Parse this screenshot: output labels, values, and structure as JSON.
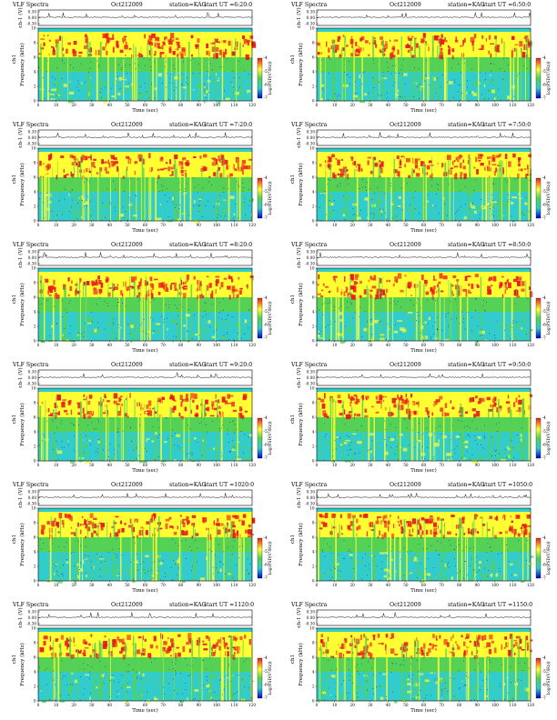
{
  "figure_title": "VLF Spectra",
  "colors": {
    "blue": "#0000cc",
    "cyan": "#33cccc",
    "green": "#55d155",
    "yellow": "#ffff33",
    "red": "#e81c1c",
    "trace": "#000000"
  },
  "common": {
    "header_label": "VLF Spectra",
    "date": "Oct212009",
    "station": "station=KAG",
    "start_prefix": "start  UT =",
    "top_ylabel": "ch-1 (V)",
    "top_ticks": [
      "0.30",
      "0.00",
      "-0.30"
    ],
    "channel_label": "ch1",
    "freq_ylabel": "Frequency (kHz)",
    "freq_ticks": [
      "0",
      "2",
      "4",
      "6",
      "8",
      "10"
    ],
    "time_label": "Time (sec)",
    "time_ticks": [
      "0",
      "10",
      "20",
      "30",
      "40",
      "50",
      "60",
      "70",
      "80",
      "90",
      "100",
      "110",
      "120"
    ],
    "colorbar_label": "Log(PSD(V²/Hz))",
    "colorbar_ticks": [
      "-4",
      "-5",
      "-6",
      "-7"
    ]
  },
  "chart_data": [
    {
      "type": "heatmap",
      "title": "VLF Spectra",
      "start_ut": "6:20:0",
      "x_range_sec": [
        0,
        120
      ],
      "y_range_khz": [
        0,
        10
      ],
      "ch1_range_v": [
        -0.3,
        0.3
      ],
      "colorbar_range": [
        -7,
        -4
      ],
      "band_khz": {
        "saturated_top": [
          9.5,
          10
        ],
        "strong": [
          6,
          9
        ],
        "moderate": [
          4,
          6
        ],
        "weak": [
          0,
          4
        ]
      }
    },
    {
      "type": "heatmap",
      "title": "VLF Spectra",
      "start_ut": "6:50:0",
      "x_range_sec": [
        0,
        120
      ],
      "y_range_khz": [
        0,
        10
      ],
      "ch1_range_v": [
        -0.3,
        0.3
      ],
      "colorbar_range": [
        -7,
        -4
      ],
      "band_khz": {
        "saturated_top": [
          9.5,
          10
        ],
        "strong": [
          6,
          9
        ],
        "moderate": [
          4,
          6
        ],
        "weak": [
          0,
          4
        ]
      }
    },
    {
      "type": "heatmap",
      "title": "VLF Spectra",
      "start_ut": "7:20:0",
      "x_range_sec": [
        0,
        120
      ],
      "y_range_khz": [
        0,
        10
      ],
      "ch1_range_v": [
        -0.3,
        0.3
      ],
      "colorbar_range": [
        -7,
        -4
      ],
      "band_khz": {
        "saturated_top": [
          9.5,
          10
        ],
        "strong": [
          6,
          9
        ],
        "moderate": [
          4,
          6
        ],
        "weak": [
          0,
          4
        ]
      }
    },
    {
      "type": "heatmap",
      "title": "VLF Spectra",
      "start_ut": "7:50:0",
      "x_range_sec": [
        0,
        120
      ],
      "y_range_khz": [
        0,
        10
      ],
      "ch1_range_v": [
        -0.3,
        0.3
      ],
      "colorbar_range": [
        -7,
        -4
      ],
      "band_khz": {
        "saturated_top": [
          9.5,
          10
        ],
        "strong": [
          6,
          9
        ],
        "moderate": [
          4,
          6
        ],
        "weak": [
          0,
          4
        ]
      }
    },
    {
      "type": "heatmap",
      "title": "VLF Spectra",
      "start_ut": "8:20:0",
      "x_range_sec": [
        0,
        120
      ],
      "y_range_khz": [
        0,
        10
      ],
      "ch1_range_v": [
        -0.3,
        0.3
      ],
      "colorbar_range": [
        -7,
        -4
      ],
      "band_khz": {
        "saturated_top": [
          9.5,
          10
        ],
        "strong": [
          6,
          9
        ],
        "moderate": [
          4,
          6
        ],
        "weak": [
          0,
          4
        ]
      }
    },
    {
      "type": "heatmap",
      "title": "VLF Spectra",
      "start_ut": "8:50:0",
      "x_range_sec": [
        0,
        120
      ],
      "y_range_khz": [
        0,
        10
      ],
      "ch1_range_v": [
        -0.3,
        0.3
      ],
      "colorbar_range": [
        -7,
        -4
      ],
      "band_khz": {
        "saturated_top": [
          9.5,
          10
        ],
        "strong": [
          6,
          9
        ],
        "moderate": [
          4,
          6
        ],
        "weak": [
          0,
          4
        ]
      }
    },
    {
      "type": "heatmap",
      "title": "VLF Spectra",
      "start_ut": "9:20:0",
      "x_range_sec": [
        0,
        120
      ],
      "y_range_khz": [
        0,
        10
      ],
      "ch1_range_v": [
        -0.3,
        0.3
      ],
      "colorbar_range": [
        -7,
        -4
      ],
      "band_khz": {
        "saturated_top": [
          9.5,
          10
        ],
        "strong": [
          6,
          9
        ],
        "moderate": [
          4,
          6
        ],
        "weak": [
          0,
          4
        ]
      }
    },
    {
      "type": "heatmap",
      "title": "VLF Spectra",
      "start_ut": "9:50:0",
      "x_range_sec": [
        0,
        120
      ],
      "y_range_khz": [
        0,
        10
      ],
      "ch1_range_v": [
        -0.3,
        0.3
      ],
      "colorbar_range": [
        -7,
        -4
      ],
      "band_khz": {
        "saturated_top": [
          9.5,
          10
        ],
        "strong": [
          6,
          9
        ],
        "moderate": [
          4,
          6
        ],
        "weak": [
          0,
          4
        ]
      }
    },
    {
      "type": "heatmap",
      "title": "VLF Spectra",
      "start_ut": "1020:0",
      "x_range_sec": [
        0,
        120
      ],
      "y_range_khz": [
        0,
        10
      ],
      "ch1_range_v": [
        -0.3,
        0.3
      ],
      "colorbar_range": [
        -7,
        -4
      ],
      "band_khz": {
        "saturated_top": [
          9.5,
          10
        ],
        "strong": [
          6,
          9
        ],
        "moderate": [
          4,
          6
        ],
        "weak": [
          0,
          4
        ]
      }
    },
    {
      "type": "heatmap",
      "title": "VLF Spectra",
      "start_ut": "1050:0",
      "x_range_sec": [
        0,
        120
      ],
      "y_range_khz": [
        0,
        10
      ],
      "ch1_range_v": [
        -0.3,
        0.3
      ],
      "colorbar_range": [
        -7,
        -4
      ],
      "band_khz": {
        "saturated_top": [
          9.5,
          10
        ],
        "strong": [
          6,
          9
        ],
        "moderate": [
          4,
          6
        ],
        "weak": [
          0,
          4
        ]
      }
    },
    {
      "type": "heatmap",
      "title": "VLF Spectra",
      "start_ut": "1120:0",
      "x_range_sec": [
        0,
        120
      ],
      "y_range_khz": [
        0,
        10
      ],
      "ch1_range_v": [
        -0.3,
        0.3
      ],
      "colorbar_range": [
        -7,
        -4
      ],
      "band_khz": {
        "saturated_top": [
          9.5,
          10
        ],
        "strong": [
          6,
          9
        ],
        "moderate": [
          4,
          6
        ],
        "weak": [
          0,
          4
        ]
      }
    },
    {
      "type": "heatmap",
      "title": "VLF Spectra",
      "start_ut": "1150:0",
      "x_range_sec": [
        0,
        120
      ],
      "y_range_khz": [
        0,
        10
      ],
      "ch1_range_v": [
        -0.3,
        0.3
      ],
      "colorbar_range": [
        -7,
        -4
      ],
      "band_khz": {
        "saturated_top": [
          9.5,
          10
        ],
        "strong": [
          6,
          9
        ],
        "moderate": [
          4,
          6
        ],
        "weak": [
          0,
          4
        ]
      }
    }
  ]
}
